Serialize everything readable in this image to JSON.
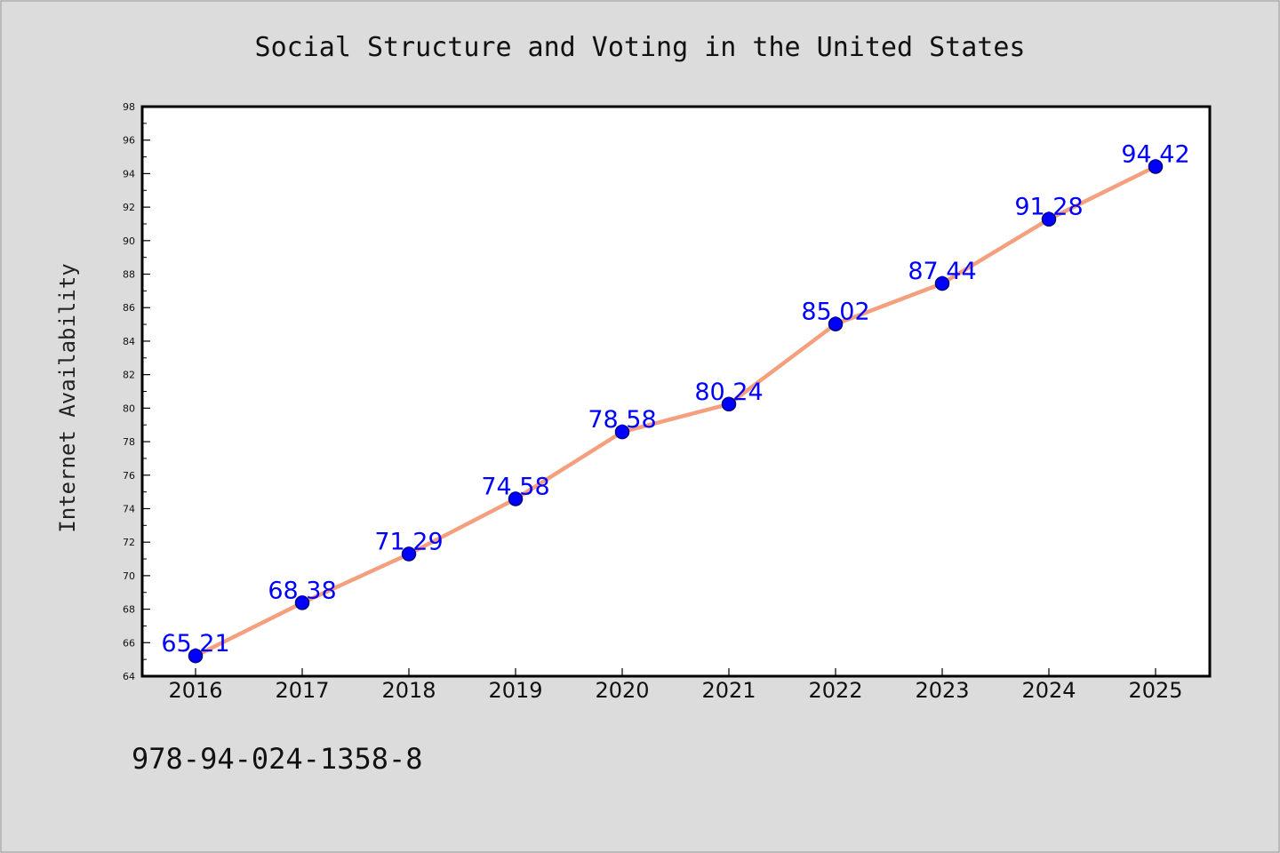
{
  "chart_data": {
    "type": "line",
    "title": "Social Structure and Voting in the United States",
    "xlabel": "",
    "ylabel": "Internet Availability",
    "categories": [
      "2016",
      "2017",
      "2018",
      "2019",
      "2020",
      "2021",
      "2022",
      "2023",
      "2024",
      "2025"
    ],
    "series": [
      {
        "values": [
          65.21,
          68.38,
          71.29,
          74.58,
          78.58,
          80.24,
          85.02,
          87.44,
          91.28,
          94.42
        ]
      }
    ],
    "data_labels": [
      "65.21",
      "68.38",
      "71.29",
      "74.58",
      "78.58",
      "80.24",
      "85.02",
      "87.44",
      "91.28",
      "94.42"
    ],
    "ylim": [
      64,
      98
    ],
    "yticks": [
      "64",
      "66",
      "68",
      "70",
      "72",
      "74",
      "76",
      "78",
      "80",
      "82",
      "84",
      "86",
      "88",
      "90",
      "92",
      "94",
      "96",
      "98"
    ],
    "grid": false,
    "legend": "none",
    "colors": {
      "line": "#f4a07e",
      "marker_fill": "#0000ff",
      "marker_edge": "#000080",
      "data_label": "#0000ff",
      "figure_background": "#dcdcdc",
      "plot_background": "#ffffff"
    }
  },
  "footer": {
    "isbn": "978-94-024-1358-8"
  }
}
